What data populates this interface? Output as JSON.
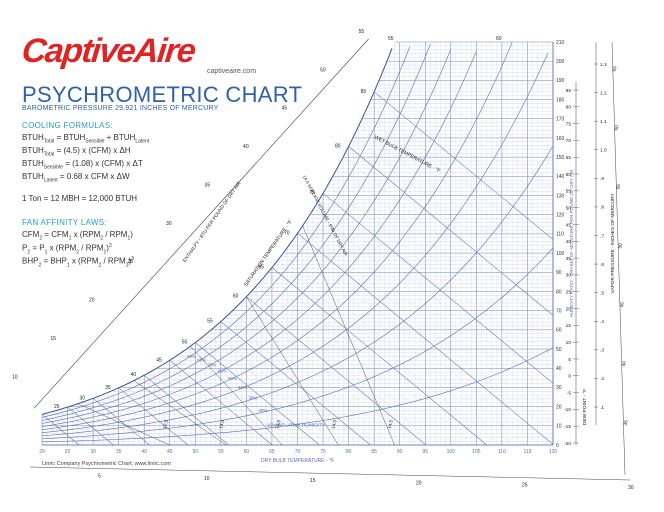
{
  "brand": {
    "name": "CaptiveAire",
    "url": "captiveaire.com"
  },
  "title": "PSYCHROMETRIC CHART",
  "subtitle": "BAROMETRIC PRESSURE 29.921 INCHES OF MERCURY",
  "cooling": {
    "heading": "COOLING FORMULAS:",
    "lines": [
      "BTUH Total = BTUH Sensible + BTUH Latent",
      "BTUH Total = (4.5) x (CFM) x ΔH",
      "BTUH Sensible = (1.08) x (CFM) x ΔT",
      "BTUH Latent = 0.68 x CFM x ΔW"
    ],
    "ton": "1 Ton = 12 MBH = 12,000 BTUH"
  },
  "fan": {
    "heading": "FAN AFFINITY LAWS:",
    "lines": [
      "CFM 2 = CFM 1 x (RPM 2 / RPM 1)",
      "P 2 = P 1 x (RPM 2 / RPM 1) 2",
      "BHP 2 = BHP 1 x (RPM 2 / RPM 1) 3"
    ]
  },
  "credit": "Linric Company Psychrometric Chart, www.linric.com",
  "colors": {
    "brand_red": "#e02424",
    "title_blue": "#2f61a8",
    "grid_blue": "#5a6fb5",
    "heading_cyan": "#2a9bc9"
  },
  "chart_data": {
    "type": "line",
    "title": "PSYCHROMETRIC CHART",
    "xlabel": "DRY BULB TEMPERATURE - °F",
    "ylabel": "HUMIDITY RATIO - GRAINS OF MOISTURE PER POUND OF DRY AIR",
    "x_ticks": [
      20,
      25,
      30,
      35,
      40,
      45,
      50,
      55,
      60,
      65,
      70,
      75,
      80,
      85,
      90,
      95,
      100,
      105,
      110,
      115,
      120
    ],
    "xlim": [
      20,
      120
    ],
    "y_ticks": [
      0,
      10,
      20,
      30,
      40,
      50,
      60,
      70,
      80,
      90,
      100,
      110,
      120,
      130,
      140,
      150,
      160,
      170,
      180,
      190,
      200,
      210
    ],
    "ylim": [
      0,
      210
    ],
    "series": [
      {
        "name": "10% RELATIVE HUMIDITY",
        "rh": 10
      },
      {
        "rh": 20
      },
      {
        "rh": 30
      },
      {
        "rh": 40
      },
      {
        "rh": 50
      },
      {
        "rh": 60
      },
      {
        "rh": 70
      },
      {
        "rh": 80
      },
      {
        "rh": 90
      }
    ],
    "rh_labels": [
      "10% RELATIVE HUMIDITY",
      "20%",
      "30%",
      "40%",
      "50%",
      "60%",
      "70%",
      "80%",
      "90%"
    ],
    "saturation_label": "SATURATION TEMPERATURE - °F",
    "saturation_ticks": [
      25,
      30,
      35,
      40,
      45,
      50,
      55,
      60,
      65,
      70,
      75,
      80,
      85
    ],
    "enthalpy_label": "ENTHALPY - BTU PER POUND OF DRY AIR",
    "enthalpy_ticks": [
      10,
      15,
      20,
      25,
      30,
      35,
      40,
      45,
      50,
      55
    ],
    "wet_bulb_label": "WET BULB TEMPERATURE - °F",
    "specific_volume_label": "14.0 SPECIFIC VOLUME - ft³/lb OF DRY AIR",
    "specific_volume_ticks": [
      "12.5",
      "13.0",
      "13.5",
      "14.0",
      "14.5"
    ],
    "dew_point_label": "DEW POINT - °F",
    "dew_point_ticks": [
      "85",
      "80",
      "75",
      "70",
      "65",
      "60",
      "55",
      "50",
      "45",
      "40",
      "35",
      "30",
      "25",
      "20",
      "15",
      "10",
      "5",
      "0",
      "-5",
      "-10",
      "-15",
      "-20"
    ],
    "vapor_pressure_label": "VAPOR PRESSURE - INCHES OF MERCURY",
    "vapor_pressure_ticks": [
      "1.3",
      "1.2",
      "1.1",
      "1.0",
      ".9",
      ".8",
      ".7",
      ".6",
      ".5",
      ".4",
      ".3",
      ".2",
      ".1"
    ],
    "outer_ticks": [
      "5",
      "10",
      "15",
      "20",
      "25",
      "30"
    ],
    "right_outer_ticks": [
      "65",
      "60",
      "55",
      "50",
      "45",
      "40",
      "35"
    ],
    "top_ticks": [
      "55",
      "60"
    ],
    "grid": true
  }
}
